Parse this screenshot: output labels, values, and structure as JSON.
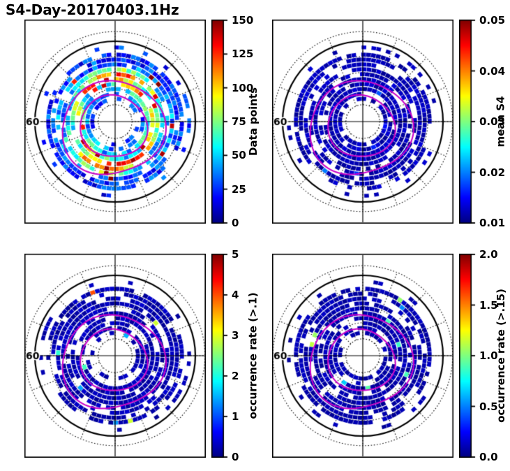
{
  "title": "S4-Day-20170403.1Hz",
  "colors": {
    "background": "#ffffff",
    "frame": "#000000",
    "grid": "#111111",
    "crosshair": "#000000",
    "auroral_oval": "#c800c8",
    "colormap": "jet",
    "bin_low": "#000080",
    "bin_high": "#800000"
  },
  "oval_overlays": [
    {
      "r": 0.4,
      "dx": -0.02,
      "dy": 0.06,
      "w1": 0.05,
      "w2": 0.03,
      "p1": 1.2,
      "p2": 0.5
    },
    {
      "r": 0.61,
      "dx": -0.03,
      "dy": 0.08,
      "w1": 0.06,
      "w2": 0.04,
      "p1": 2.0,
      "p2": 1.1
    }
  ],
  "chart_data": [
    {
      "type": "heatmap",
      "projection": "polar",
      "position": "top-left",
      "colorbar": {
        "label": "Data points",
        "min": 0,
        "max": 150,
        "ticks": [
          "0",
          "25",
          "50",
          "75",
          "100",
          "125",
          "150"
        ]
      },
      "grid": {
        "lat_label": "60",
        "spoke_step_deg": 22.5,
        "dotted_circles": true
      },
      "overlays": [
        "auroral-oval-inner",
        "auroral-oval-outer",
        "crosshair"
      ],
      "summary": "Polar (magnetic latitude vs MLT) map of GPS S4 data-point counts for 2017-04-03 day side, 1 Hz; annular bins between roughly 55 and 80 degrees latitude with counts from ~10 (dark blue) up to ~150 (red) in bright mid-latitude arcs; magenta auroral-oval contours overlaid.",
      "render": {
        "seed": 7,
        "profile": "banded",
        "base": 0.06,
        "noise": 0.22,
        "band_center": 0.45,
        "band_sigma": 0.17,
        "band_amp": 0.75,
        "spike_prob": 0.05
      }
    },
    {
      "type": "heatmap",
      "projection": "polar",
      "position": "top-right",
      "colorbar": {
        "label": "mean S4",
        "min": 0.01,
        "max": 0.05,
        "ticks": [
          "0.01",
          "0.02",
          "0.03",
          "0.04",
          "0.05"
        ]
      },
      "grid": {
        "lat_label": "60",
        "spoke_step_deg": 22.5,
        "dotted_circles": true
      },
      "overlays": [
        "auroral-oval-inner",
        "auroral-oval-outer",
        "crosshair"
      ],
      "summary": "Mean S4 per bin; nearly all bins at the colorbar minimum ~0.01-0.015 (uniform dark blue).",
      "render": {
        "seed": 13,
        "profile": "flat",
        "base": 0.02,
        "noise": 0.07,
        "hot_prob": 0.012,
        "hot_min": 0.12,
        "hot_max": 0.28
      }
    },
    {
      "type": "heatmap",
      "projection": "polar",
      "position": "bottom-left",
      "colorbar": {
        "label": "occurrence rate (>.1)",
        "min": 0,
        "max": 5,
        "ticks": [
          "0",
          "1",
          "2",
          "3",
          "4",
          "5"
        ]
      },
      "grid": {
        "lat_label": "60",
        "spoke_step_deg": 22.5,
        "dotted_circles": true
      },
      "overlays": [
        "auroral-oval-inner",
        "auroral-oval-outer",
        "crosshair"
      ],
      "summary": "Occurrence rate of S4 > 0.1; almost all bins near 0 (dark blue) with a few isolated bins up to ~3-4 on the dusk side.",
      "render": {
        "seed": 21,
        "profile": "flat",
        "base": 0.02,
        "noise": 0.06,
        "hot_prob": 0.03,
        "hot_min": 0.25,
        "hot_max": 0.85
      }
    },
    {
      "type": "heatmap",
      "projection": "polar",
      "position": "bottom-right",
      "colorbar": {
        "label": "occurrence rate (>.15)",
        "min": 0.0,
        "max": 2.0,
        "ticks": [
          "0.0",
          "0.5",
          "1.0",
          "1.5",
          "2.0"
        ]
      },
      "grid": {
        "lat_label": "60",
        "spoke_step_deg": 22.5,
        "dotted_circles": true
      },
      "overlays": [
        "auroral-oval-inner",
        "auroral-oval-outer",
        "crosshair"
      ],
      "summary": "Occurrence rate of S4 > 0.15; essentially all bins near 0 (dark blue).",
      "render": {
        "seed": 29,
        "profile": "flat",
        "base": 0.02,
        "noise": 0.05,
        "hot_prob": 0.012,
        "hot_min": 0.2,
        "hot_max": 0.6
      }
    }
  ]
}
